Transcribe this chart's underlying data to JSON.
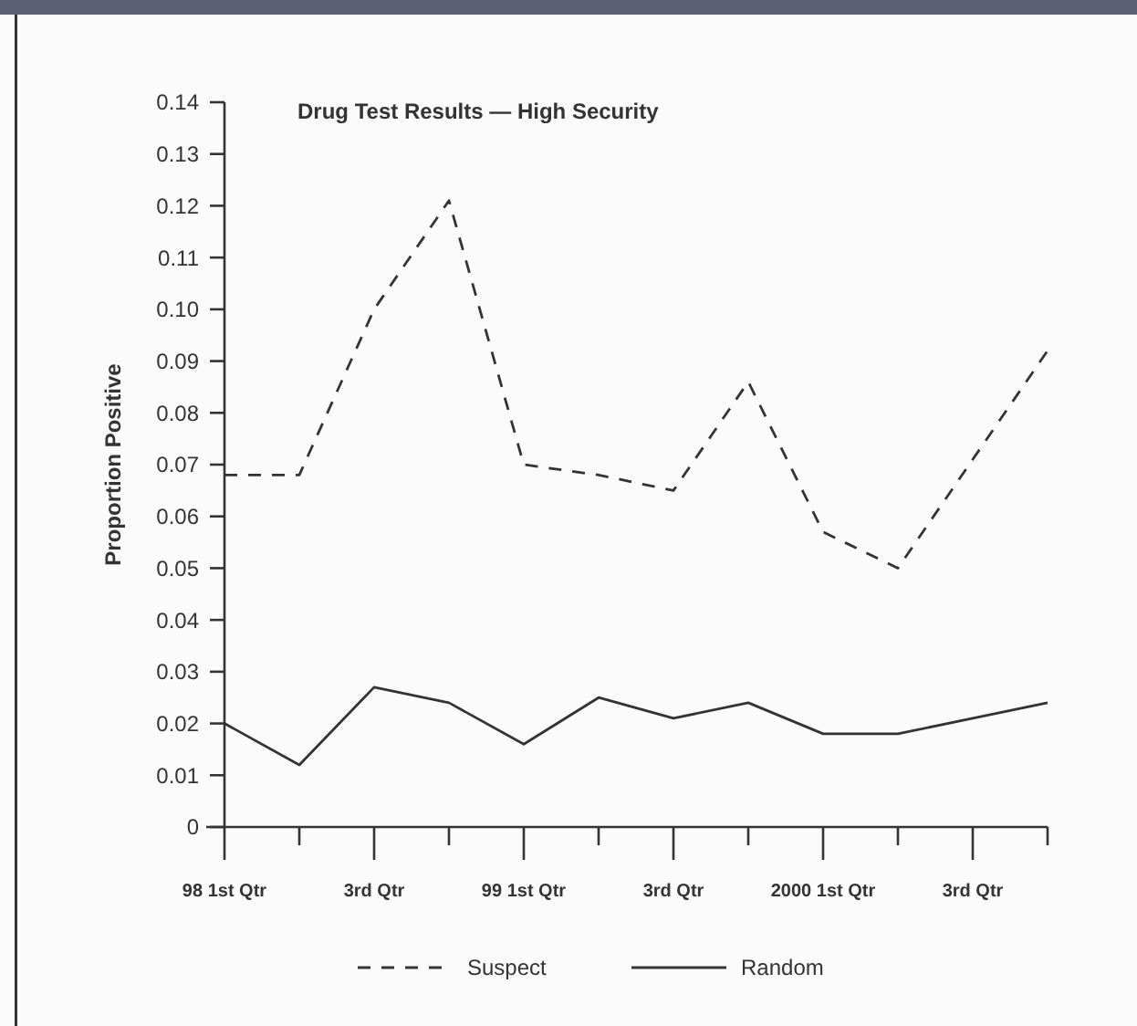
{
  "chart_data": {
    "type": "line",
    "title": "Drug Test Results — High Security",
    "ylabel": "Proportion Positive",
    "categories": [
      "98 1st Qtr",
      null,
      "3rd Qtr",
      null,
      "99 1st Qtr",
      null,
      "3rd Qtr",
      null,
      "2000 1st Qtr",
      null,
      "3rd Qtr",
      null
    ],
    "series": [
      {
        "name": "Suspect",
        "color": "#333333",
        "line_style": "dashed",
        "values": [
          0.068,
          0.068,
          0.1,
          0.121,
          0.07,
          0.068,
          0.065,
          0.086,
          0.057,
          0.05,
          0.071,
          0.092
        ]
      },
      {
        "name": "Random",
        "color": "#333333",
        "line_style": "solid",
        "values": [
          0.02,
          0.012,
          0.027,
          0.024,
          0.016,
          0.025,
          0.021,
          0.024,
          0.018,
          0.018,
          0.021,
          0.024
        ]
      }
    ],
    "ylim": [
      0,
      0.14
    ],
    "yticks": [
      0,
      0.01,
      0.02,
      0.03,
      0.04,
      0.05,
      0.06,
      0.07,
      0.08,
      0.09,
      {
        "value": 0.1,
        "label": "0.10"
      },
      0.11,
      0.12,
      0.13,
      0.14
    ],
    "legend": "bottom",
    "grid": false
  }
}
